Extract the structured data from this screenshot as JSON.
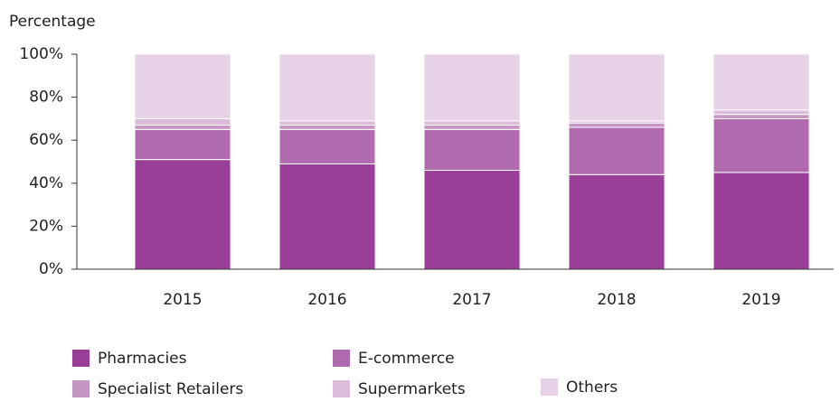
{
  "chart_data": {
    "type": "stacked_bar",
    "y_label": "Percentage",
    "categories": [
      "2015",
      "2016",
      "2017",
      "2018",
      "2019"
    ],
    "series": [
      {
        "name": "Pharmacies",
        "color": "#993f98",
        "values": [
          51,
          49,
          46,
          44,
          45
        ]
      },
      {
        "name": "E-commerce",
        "color": "#b06aae",
        "values": [
          14,
          16,
          19,
          22,
          25
        ]
      },
      {
        "name": "Specialist Retailers",
        "color": "#c595c4",
        "values": [
          2,
          2,
          2,
          2,
          2
        ]
      },
      {
        "name": "Supermarkets",
        "color": "#dbbcda",
        "values": [
          3,
          2,
          2,
          1,
          2
        ]
      },
      {
        "name": "Others",
        "color": "#e7d1e6",
        "values": [
          30,
          31,
          31,
          31,
          26
        ]
      }
    ],
    "ylim": [
      0,
      100
    ],
    "yticks": [
      {
        "value": 0,
        "label": "0%"
      },
      {
        "value": 20,
        "label": "20%"
      },
      {
        "value": 40,
        "label": "40%"
      },
      {
        "value": 60,
        "label": "60%"
      },
      {
        "value": 80,
        "label": "80%"
      },
      {
        "value": 100,
        "label": "100%"
      }
    ],
    "grid": false,
    "legend": "bottom"
  }
}
